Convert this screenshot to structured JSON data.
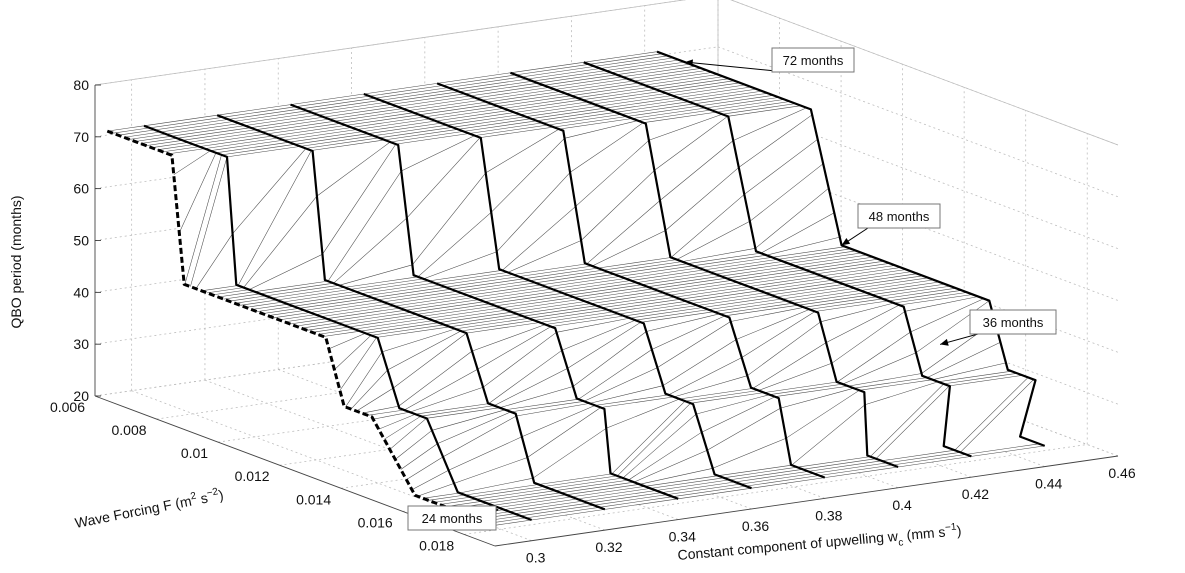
{
  "chart_data": {
    "type": "surface3d",
    "zlabel": "QBO period (months)",
    "ylabel_main": "Wave Forcing F (m",
    "ylabel_sup1": "2",
    "ylabel_mid": " s",
    "ylabel_sup2": "−2",
    "ylabel_end": ")",
    "xlabel_main": "Constant component of upwelling w",
    "xlabel_sub": "c",
    "xlabel_mid": " (mm s",
    "xlabel_sup": "−1",
    "xlabel_end": ")",
    "x_ticks": [
      "0.3",
      "0.32",
      "0.34",
      "0.36",
      "0.38",
      "0.4",
      "0.42",
      "0.44",
      "0.46"
    ],
    "y_ticks": [
      "0.006",
      "0.008",
      "0.01",
      "0.012",
      "0.014",
      "0.016",
      "0.018"
    ],
    "z_ticks": [
      "20",
      "30",
      "40",
      "50",
      "60",
      "70",
      "80"
    ],
    "xlim": [
      0.29,
      0.46
    ],
    "ylim": [
      0.006,
      0.019
    ],
    "zlim": [
      20,
      80
    ],
    "annotations": [
      "72 months",
      "48 months",
      "36 months",
      "24 months"
    ],
    "plateaus_months": [
      24,
      36,
      48,
      72
    ],
    "series_x": [
      0.29,
      0.3,
      0.32,
      0.34,
      0.36,
      0.38,
      0.4,
      0.42,
      0.44
    ],
    "surface_points": [
      {
        "x": 0.29,
        "F": [
          0.0064,
          0.0076,
          0.0098,
          0.0126,
          0.0141,
          0.0173
        ],
        "period": [
          72,
          72,
          48,
          48,
          36,
          24
        ]
      },
      {
        "x": 0.3,
        "F": [
          0.0064,
          0.0082,
          0.0103,
          0.0131,
          0.0147,
          0.0175
        ],
        "period": [
          72,
          72,
          48,
          48,
          36,
          24
        ]
      },
      {
        "x": 0.32,
        "F": [
          0.0064,
          0.0086,
          0.0108,
          0.0136,
          0.0152,
          0.0176
        ],
        "period": [
          72,
          72,
          48,
          48,
          36,
          24
        ]
      },
      {
        "x": 0.34,
        "F": [
          0.0064,
          0.009,
          0.0113,
          0.0141,
          0.0157,
          0.0177
        ],
        "period": [
          72,
          72,
          48,
          48,
          36,
          24
        ]
      },
      {
        "x": 0.36,
        "F": [
          0.0064,
          0.0093,
          0.0117,
          0.0146,
          0.0162,
          0.0178
        ],
        "period": [
          72,
          72,
          48,
          48,
          36,
          24
        ]
      },
      {
        "x": 0.38,
        "F": [
          0.0064,
          0.0096,
          0.0121,
          0.015,
          0.0166,
          0.0179
        ],
        "period": [
          72,
          72,
          48,
          48,
          36,
          24
        ]
      },
      {
        "x": 0.4,
        "F": [
          0.0064,
          0.0099,
          0.0125,
          0.0155,
          0.017,
          0.018
        ],
        "period": [
          72,
          72,
          48,
          48,
          36,
          24
        ]
      },
      {
        "x": 0.42,
        "F": [
          0.0064,
          0.0102,
          0.0129,
          0.0159,
          0.0174,
          0.0181
        ],
        "period": [
          72,
          72,
          48,
          48,
          36,
          24
        ]
      },
      {
        "x": 0.44,
        "F": [
          0.0064,
          0.0105,
          0.0133,
          0.0163,
          0.0178,
          0.0182
        ],
        "period": [
          72,
          72,
          48,
          48,
          36,
          24
        ]
      }
    ]
  }
}
